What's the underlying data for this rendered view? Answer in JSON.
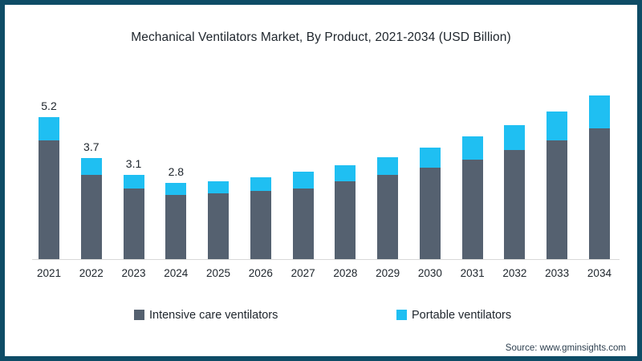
{
  "title": "Mechanical Ventilators Market, By Product, 2021-2034 (USD Billion)",
  "source": "Source: www.gminsights.com",
  "colors": {
    "frame_border": "#0E4C66",
    "axis_line": "#D8D8D8",
    "text": "#20272E",
    "intensive_care": "#556170",
    "portable": "#1FBFF2"
  },
  "legend": {
    "position": "bottom",
    "items": [
      {
        "label": "Intensive care ventilators",
        "color": "#556170"
      },
      {
        "label": "Portable ventilators",
        "color": "#1FBFF2"
      }
    ]
  },
  "chart_data": {
    "type": "bar",
    "stacked": true,
    "title": "Mechanical Ventilators Market, By Product, 2021-2034 (USD Billion)",
    "unit": "USD Billion",
    "categories": [
      "2021",
      "2022",
      "2023",
      "2024",
      "2025",
      "2026",
      "2027",
      "2028",
      "2029",
      "2030",
      "2031",
      "2032",
      "2033",
      "2034"
    ],
    "series": [
      {
        "name": "Intensive care ventilators",
        "color": "#556170",
        "values": [
          4.35,
          3.1,
          2.6,
          2.35,
          2.4,
          2.5,
          2.6,
          2.85,
          3.1,
          3.35,
          3.65,
          4.0,
          4.35,
          4.8
        ]
      },
      {
        "name": "Portable ventilators",
        "color": "#1FBFF2",
        "values": [
          0.85,
          0.6,
          0.5,
          0.45,
          0.45,
          0.5,
          0.6,
          0.6,
          0.65,
          0.75,
          0.85,
          0.9,
          1.05,
          1.2
        ]
      }
    ],
    "totals": [
      5.2,
      3.7,
      3.1,
      2.8,
      2.85,
      3.0,
      3.2,
      3.45,
      3.75,
      4.1,
      4.5,
      4.9,
      5.4,
      6.0
    ],
    "data_labels": [
      "5.2",
      "3.7",
      "3.1",
      "2.8",
      "",
      "",
      "",
      "",
      "",
      "",
      "",
      "",
      "",
      ""
    ],
    "xlabel": "",
    "ylabel": "",
    "ylim": [
      0,
      6.5
    ],
    "grid": false,
    "legend_position": "bottom"
  }
}
